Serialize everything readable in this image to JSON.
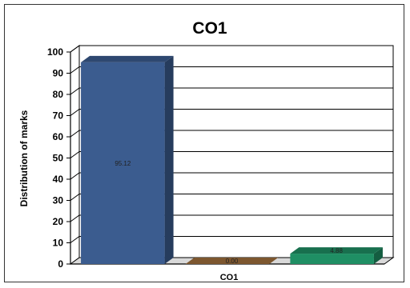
{
  "chart_data": {
    "type": "bar",
    "title": "CO1",
    "xlabel": "CO1",
    "ylabel": "Distribution of marks",
    "ylim": [
      0,
      100
    ],
    "yticks": [
      0,
      10,
      20,
      30,
      40,
      50,
      60,
      70,
      80,
      90,
      100
    ],
    "grid": true,
    "legend": "none",
    "bars": [
      {
        "value": 95.12,
        "label": "95.12",
        "color": "#3b5c8f"
      },
      {
        "value": 0.0,
        "label": "0.00",
        "color": "#a0703c"
      },
      {
        "value": 4.88,
        "label": "4.88",
        "color": "#1f8f64"
      }
    ]
  }
}
